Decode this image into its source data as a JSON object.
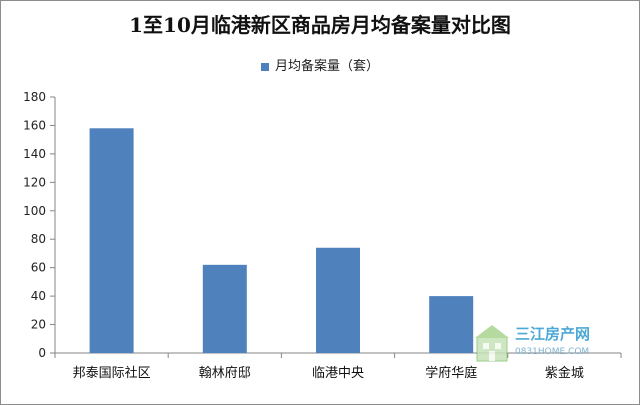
{
  "chart_data": {
    "type": "bar",
    "title": "1至10月临港新区商品房月均备案量对比图",
    "categories": [
      "邦泰国际社区",
      "翰林府邸",
      "临港中央",
      "学府华庭",
      "紫金城"
    ],
    "series": [
      {
        "name": "月均备案量（套）",
        "values": [
          158,
          62,
          74,
          40,
          0
        ]
      }
    ],
    "ylim": [
      0,
      180
    ],
    "yticks": [
      0,
      20,
      40,
      60,
      80,
      100,
      120,
      140,
      160,
      180
    ],
    "grid": false,
    "legend_position": "top-center",
    "colors": {
      "bar": "#4f81bd",
      "axis": "#868686"
    }
  },
  "watermark": {
    "text": "三江房产网",
    "url": "0831HOME.COM"
  }
}
